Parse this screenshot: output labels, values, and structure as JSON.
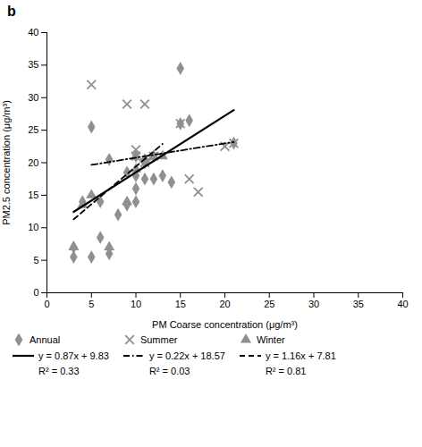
{
  "chart_data": {
    "type": "scatter",
    "title": "b",
    "xlabel": "PM Coarse concentration (μg/m³)",
    "ylabel": "PM2.5 concentration (μg/m³)",
    "xlim": [
      0,
      40
    ],
    "ylim": [
      0,
      40
    ],
    "xticks": [
      0,
      5,
      10,
      15,
      20,
      25,
      30,
      35,
      40
    ],
    "yticks": [
      0,
      5,
      10,
      15,
      20,
      25,
      30,
      35,
      40
    ],
    "grid": false,
    "legend": "bottom",
    "series": [
      {
        "name": "Annual",
        "type": "scatter",
        "marker": "diamond",
        "color": "#909090",
        "x": [
          3,
          3,
          4,
          5,
          5,
          6,
          6,
          7,
          7,
          8,
          9,
          9,
          10,
          10,
          10,
          10,
          11,
          11,
          12,
          12,
          13,
          14,
          15,
          15,
          16,
          21
        ],
        "values": [
          5.5,
          7,
          14,
          5.5,
          25.5,
          8.5,
          14,
          6,
          20.5,
          12,
          13.5,
          18.5,
          14,
          16,
          18,
          21,
          17.5,
          20,
          17.5,
          21,
          18,
          17,
          26,
          34.5,
          26.5,
          23
        ]
      },
      {
        "name": "Summer",
        "type": "scatter",
        "marker": "x",
        "color": "#909090",
        "x": [
          5,
          9,
          10,
          10,
          11,
          11,
          12,
          15,
          16,
          17,
          20,
          21
        ],
        "values": [
          32,
          29,
          21,
          22,
          20,
          29,
          21,
          26,
          17.5,
          15.5,
          22.5,
          23
        ]
      },
      {
        "name": "Winter",
        "type": "scatter",
        "marker": "triangle",
        "color": "#909090",
        "x": [
          3,
          4,
          5,
          7,
          9,
          10,
          11,
          12,
          13
        ],
        "values": [
          7,
          13.5,
          15,
          7,
          14,
          19,
          20.5,
          21,
          21
        ]
      },
      {
        "name": "y = 0.87x + 9.83",
        "type": "line",
        "line_style": "solid",
        "color": "#000000",
        "x": [
          3,
          21
        ],
        "values": [
          12.44,
          28.1
        ],
        "annotation": "R² = 0.33"
      },
      {
        "name": "y = 0.22x + 18.57",
        "type": "line",
        "line_style": "dashdot",
        "color": "#000000",
        "x": [
          5,
          21
        ],
        "values": [
          19.67,
          23.19
        ],
        "annotation": "R² = 0.03"
      },
      {
        "name": "y = 1.16x + 7.81",
        "type": "line",
        "line_style": "dashed",
        "color": "#000000",
        "x": [
          3,
          13
        ],
        "values": [
          11.29,
          22.89
        ],
        "annotation": "R² = 0.81"
      }
    ]
  }
}
